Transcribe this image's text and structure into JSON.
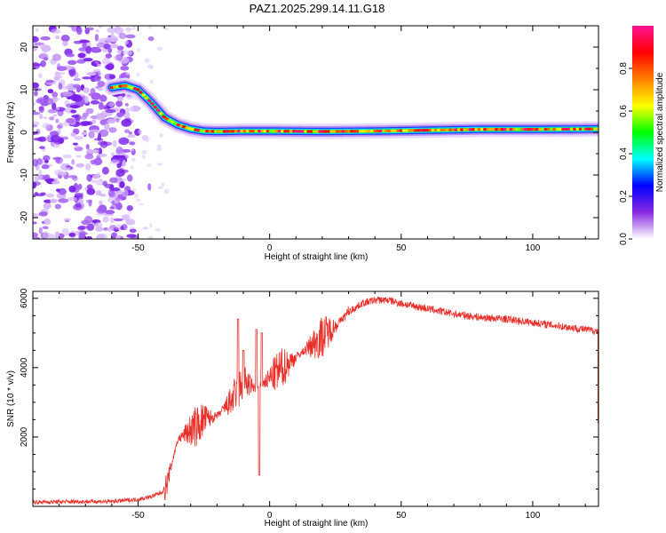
{
  "title": "PAZ1.2025.299.14.11.G18",
  "chart_data": [
    {
      "type": "heatmap",
      "xlabel": "Height of straight line (km)",
      "ylabel": "Frequency (Hz)",
      "xlim": [
        -90,
        125
      ],
      "ylim": [
        -25,
        25
      ],
      "xticks": [
        -50,
        0,
        50,
        100
      ],
      "yticks": [
        -20,
        -10,
        0,
        10,
        20
      ],
      "grid": false,
      "ridge_track": {
        "x": [
          -60,
          -55,
          -50,
          -45,
          -40,
          -35,
          -30,
          -25,
          -20,
          -10,
          0,
          20,
          40,
          60,
          80,
          100,
          125
        ],
        "y": [
          10.5,
          11,
          10,
          7,
          3.5,
          1.8,
          0.8,
          0.3,
          0.2,
          0.3,
          0.3,
          0.2,
          0.3,
          0.5,
          0.7,
          0.7,
          0.8
        ]
      },
      "colorbar": {
        "label": "Normalized spectral amplitude",
        "range": [
          0,
          1
        ],
        "ticks": [
          0.0,
          0.2,
          0.4,
          0.6,
          0.8
        ],
        "colors": [
          "#ffffff",
          "#8a2be2",
          "#0000ff",
          "#00ffff",
          "#00ff00",
          "#ffff00",
          "#ff7f00",
          "#ff0000",
          "#ff1493"
        ]
      }
    },
    {
      "type": "line",
      "xlabel": "Height of straight line (km)",
      "ylabel": "SNR (10 * v/v)",
      "xlim": [
        -90,
        125
      ],
      "ylim": [
        0,
        6200
      ],
      "xticks": [
        -50,
        0,
        50,
        100
      ],
      "yticks": [
        2000,
        4000,
        6000
      ],
      "grid": false,
      "series": [
        {
          "color": "#e8302a",
          "x": [
            -90,
            -80,
            -70,
            -60,
            -50,
            -45,
            -41,
            -39,
            -37,
            -35,
            -32,
            -28,
            -25,
            -20,
            -15,
            -12,
            -10,
            -5,
            -3,
            0,
            5,
            10,
            15,
            20,
            25,
            30,
            35,
            40,
            45,
            50,
            60,
            70,
            80,
            90,
            100,
            110,
            120,
            125
          ],
          "y": [
            120,
            130,
            140,
            140,
            200,
            280,
            400,
            650,
            1300,
            1900,
            2100,
            2300,
            2500,
            2600,
            3000,
            3300,
            3600,
            3400,
            3500,
            3700,
            4000,
            4300,
            4600,
            4900,
            5200,
            5600,
            5850,
            5950,
            5950,
            5850,
            5700,
            5550,
            5450,
            5400,
            5300,
            5200,
            5100,
            5050
          ]
        }
      ],
      "spikes": [
        {
          "x": -12,
          "y": 5400
        },
        {
          "x": -10,
          "y": 4500
        },
        {
          "x": -5,
          "y": 5100
        },
        {
          "x": -4,
          "y": 900
        },
        {
          "x": -3,
          "y": 5000
        }
      ]
    }
  ]
}
